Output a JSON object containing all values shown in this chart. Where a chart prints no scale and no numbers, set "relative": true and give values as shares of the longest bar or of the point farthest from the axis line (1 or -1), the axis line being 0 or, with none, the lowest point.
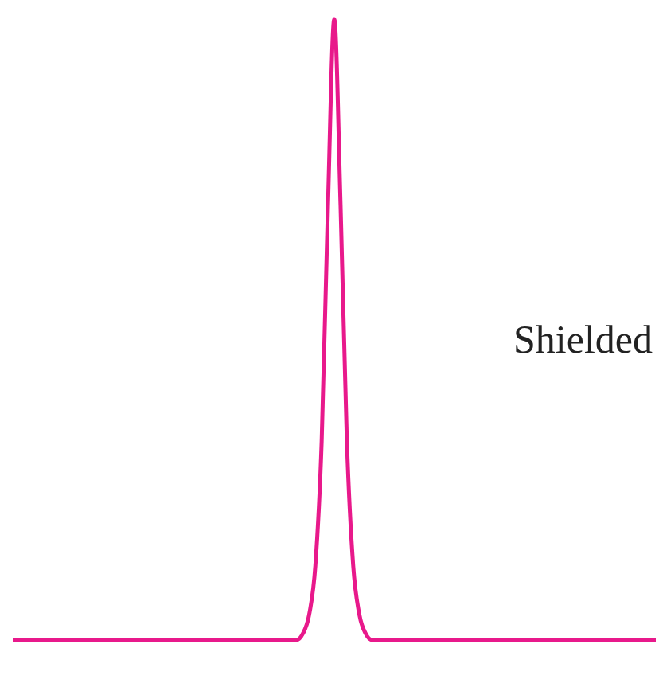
{
  "chart_data": {
    "type": "line",
    "relative": true,
    "color": "#e8198b",
    "marker": "none",
    "annotations": [
      "Shielded"
    ],
    "categories": [
      null,
      null,
      null,
      null,
      null,
      null,
      null,
      null,
      null,
      null,
      null,
      null,
      null,
      null,
      null,
      null,
      null,
      null,
      null,
      null,
      null,
      null,
      null,
      null,
      null,
      null,
      null,
      null,
      null,
      null,
      null,
      null,
      null,
      null,
      null,
      null,
      null,
      null,
      null,
      null,
      null,
      null,
      null,
      null,
      null,
      null,
      null,
      null,
      null,
      null,
      null,
      null,
      null,
      null,
      null,
      null,
      null,
      null,
      null,
      null,
      null,
      null,
      null,
      null,
      null,
      null,
      null,
      null,
      null,
      null,
      null,
      null,
      null,
      null,
      null,
      null,
      null,
      null,
      null,
      null,
      null,
      null,
      null,
      null,
      null,
      null,
      null,
      null,
      null,
      null,
      null,
      null,
      null,
      null,
      null,
      null,
      null,
      null,
      null,
      null,
      null,
      null,
      null
    ],
    "values": [
      0,
      0,
      0,
      0,
      0,
      0,
      0,
      0,
      0,
      0,
      0,
      0,
      0,
      0,
      0,
      0,
      0,
      0,
      0,
      0,
      0,
      0,
      0,
      0,
      0,
      0,
      0,
      0,
      0,
      0,
      0,
      0,
      0,
      0,
      0,
      0,
      0,
      0,
      0,
      0,
      0,
      0,
      0,
      0,
      0,
      0,
      0.01,
      0.04,
      0.12,
      0.32,
      0.7,
      1,
      0.7,
      0.32,
      0.12,
      0.04,
      0.01,
      0,
      0,
      0,
      0,
      0,
      0,
      0,
      0,
      0,
      0,
      0,
      0,
      0,
      0,
      0,
      0,
      0,
      0,
      0,
      0,
      0,
      0,
      0,
      0,
      0,
      0,
      0,
      0,
      0,
      0,
      0,
      0,
      0,
      0,
      0,
      0,
      0,
      0,
      0,
      0,
      0,
      0,
      0,
      0,
      0,
      0
    ]
  }
}
